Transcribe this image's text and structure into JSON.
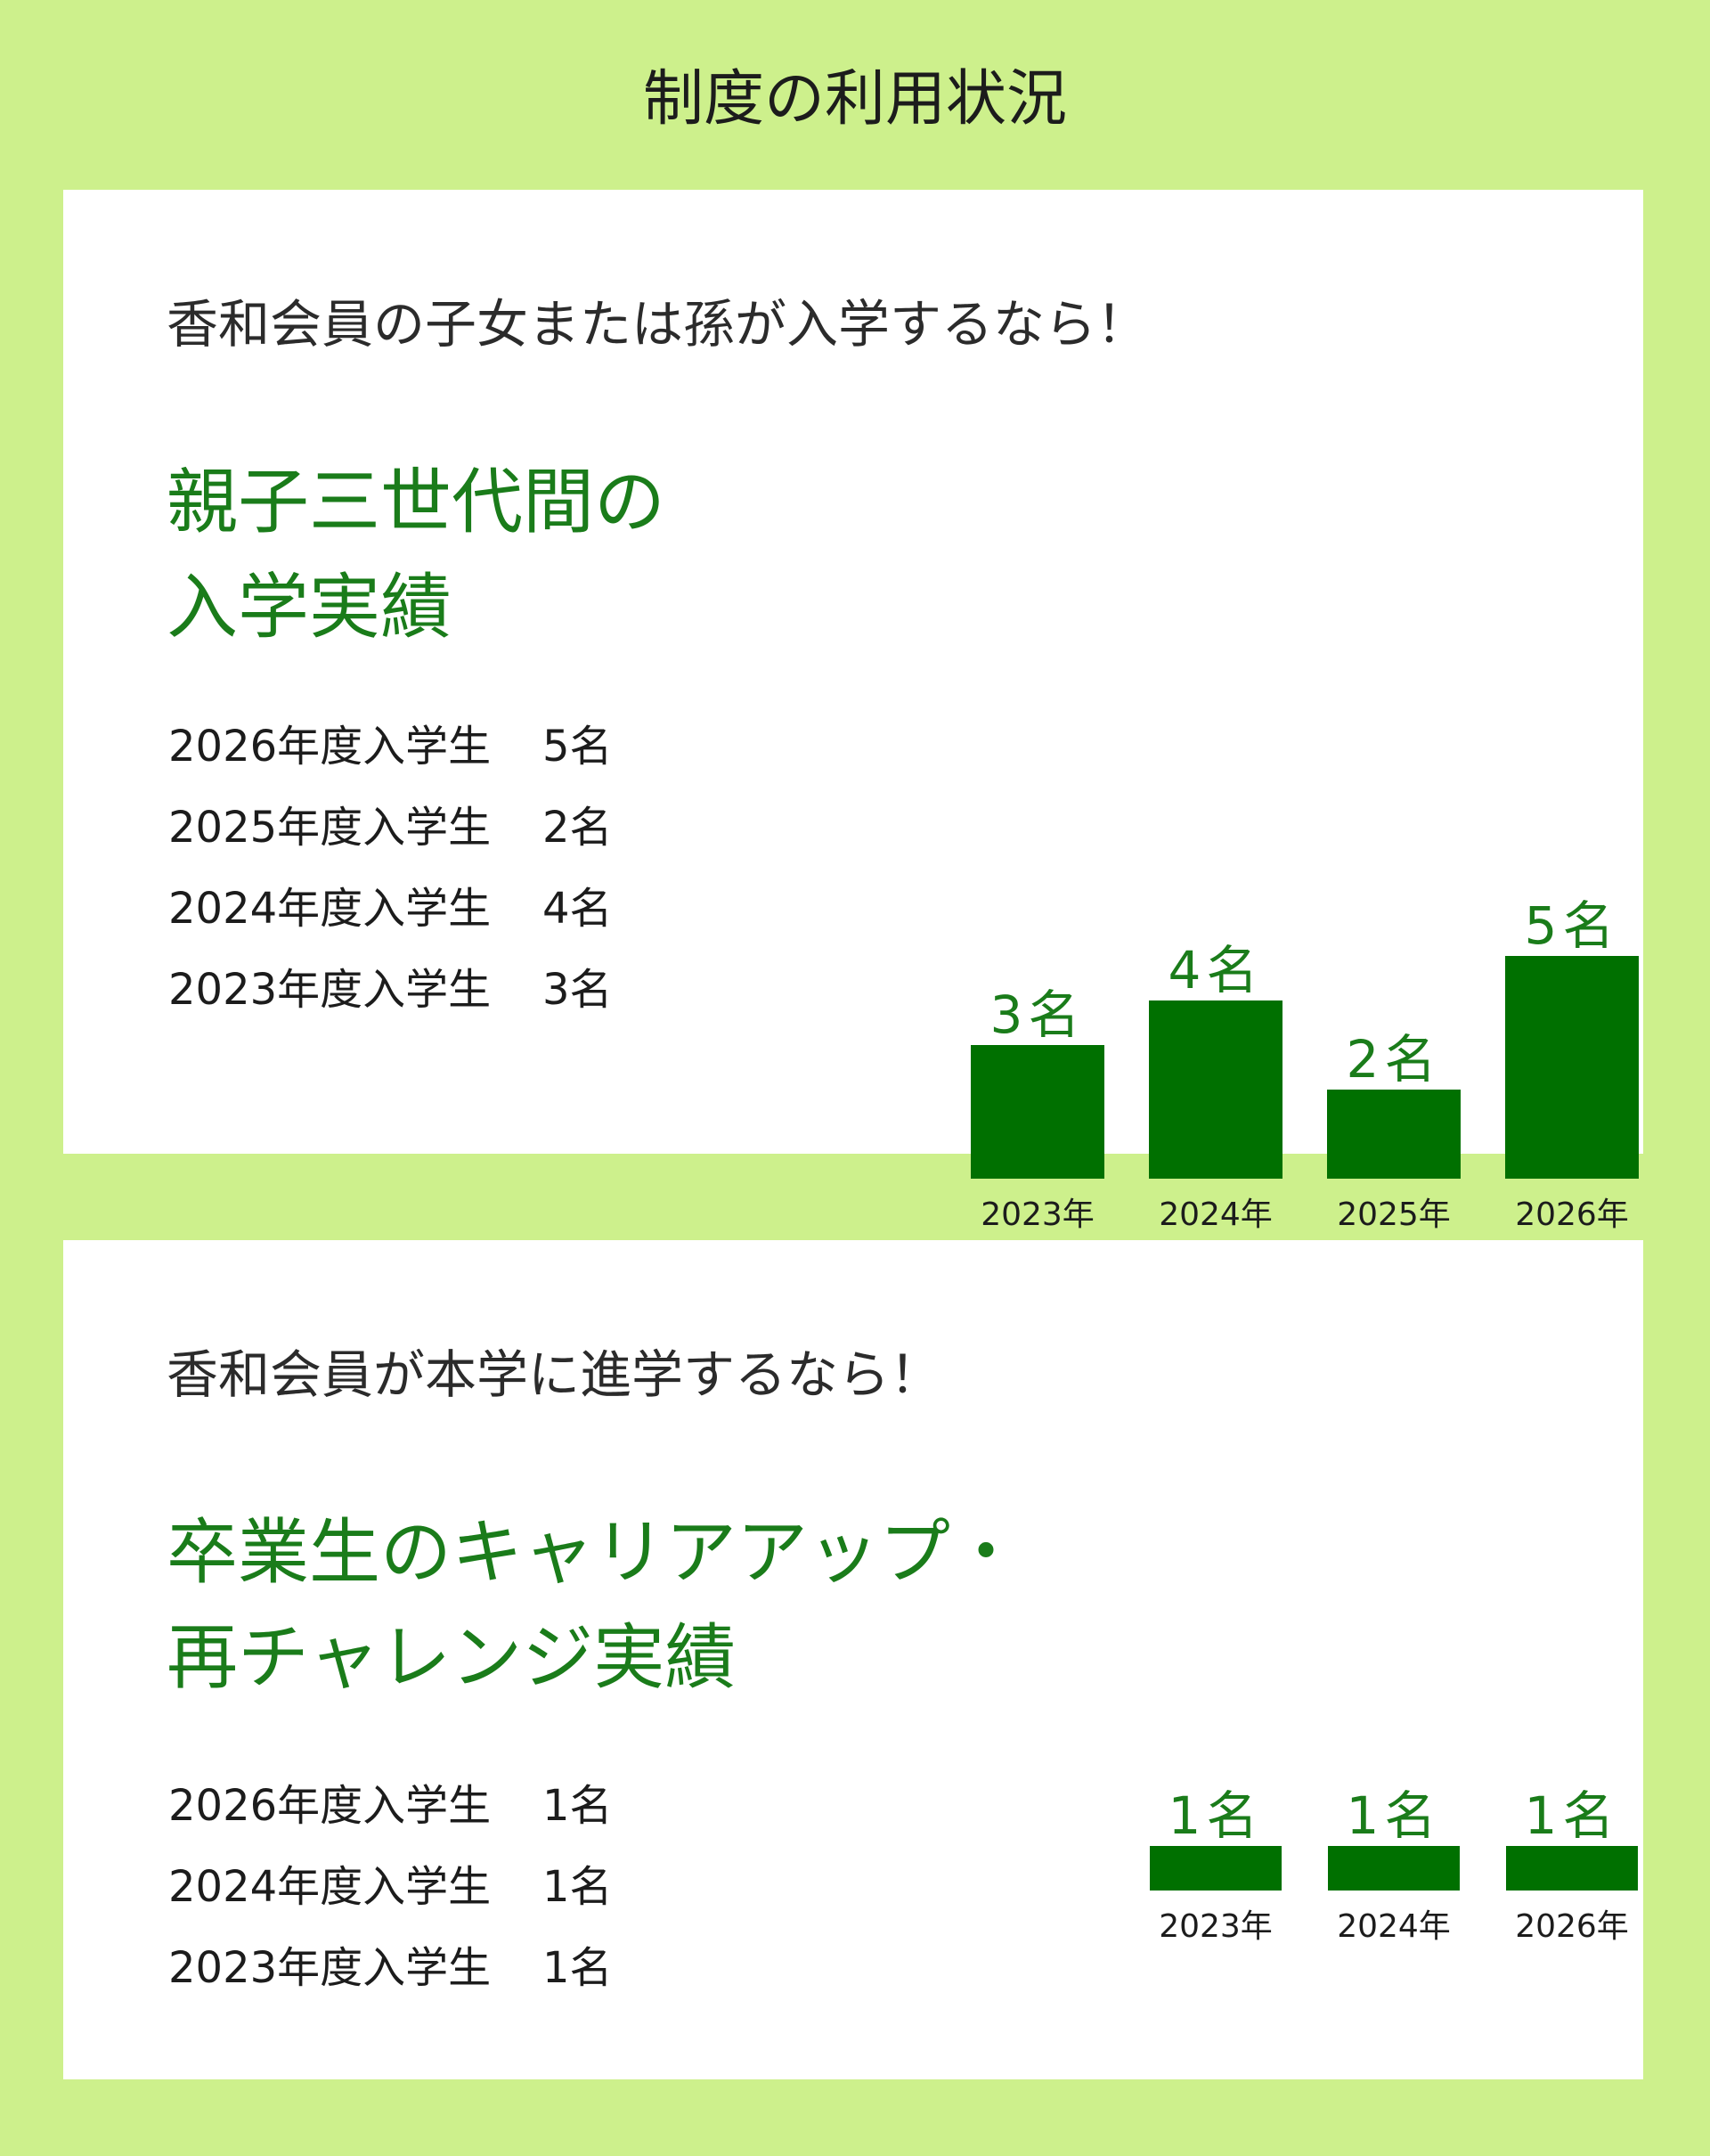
{
  "page": {
    "title": "制度の利用状況"
  },
  "section1": {
    "lead": "香和会員の子女または孫が入学するなら！",
    "headline": [
      "親子三世代間の",
      "入学実績"
    ],
    "stats": [
      {
        "label": "2026年度入学生",
        "value": "5名"
      },
      {
        "label": "2025年度入学生",
        "value": "2名"
      },
      {
        "label": "2024年度入学生",
        "value": "4名"
      },
      {
        "label": "2023年度入学生",
        "value": "3名"
      }
    ]
  },
  "section2": {
    "lead": "香和会員が本学に進学するなら！",
    "headline": [
      "卒業生のキャリアアップ・",
      "再チャレンジ実績"
    ],
    "stats": [
      {
        "label": "2026年度入学生",
        "value": "1名"
      },
      {
        "label": "2024年度入学生",
        "value": "1名"
      },
      {
        "label": "2023年度入学生",
        "value": "1名"
      }
    ]
  },
  "colors": {
    "background": "#cdf08c",
    "bar": "#007000",
    "accent_text": "#1a7c1a",
    "card": "#ffffff"
  },
  "chart_data": [
    {
      "type": "bar",
      "categories": [
        "2023年",
        "2024年",
        "2025年",
        "2026年"
      ],
      "values": [
        3,
        4,
        2,
        5
      ],
      "data_labels": [
        "3名",
        "4名",
        "2名",
        "5名"
      ],
      "title": "",
      "xlabel": "",
      "ylabel": "",
      "grid": false
    },
    {
      "type": "bar",
      "categories": [
        "2023年",
        "2024年",
        "2026年"
      ],
      "values": [
        1,
        1,
        1
      ],
      "data_labels": [
        "1名",
        "1名",
        "1名"
      ],
      "title": "",
      "xlabel": "",
      "ylabel": "",
      "grid": false
    }
  ]
}
